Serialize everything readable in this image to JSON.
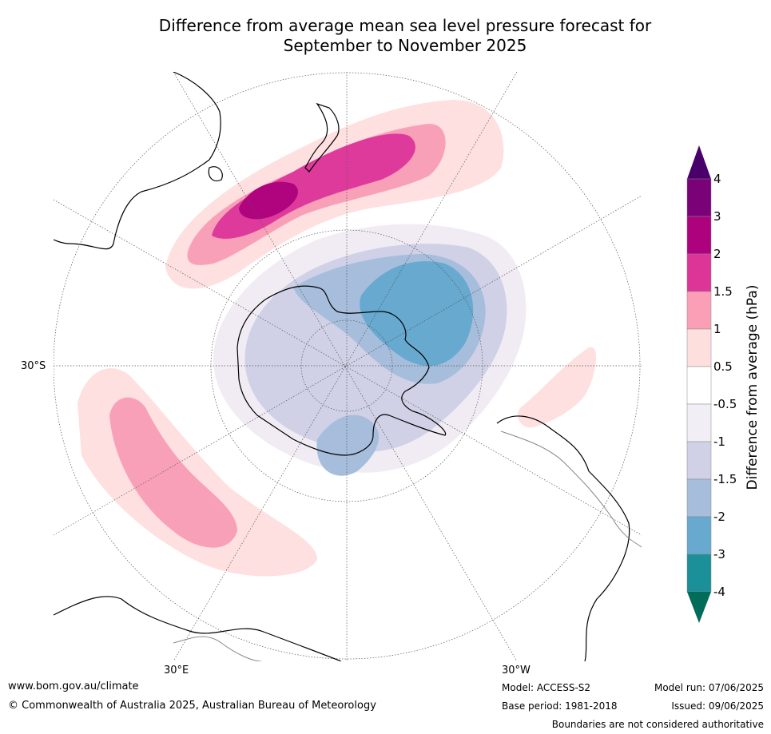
{
  "title": {
    "line1": "Difference from average mean sea level pressure forecast for",
    "line2": "September to November 2025"
  },
  "map": {
    "projection": "south-polar stereographic",
    "labels": {
      "lat_30s": "30°S",
      "lon_30e": "30°E",
      "lon_30w": "30°W"
    },
    "colors": {
      "pos_0_5_1": "#fde0df",
      "pos_1_1_5": "#f9a0b9",
      "pos_1_5_2": "#de3a9c",
      "pos_2_3": "#b0047f",
      "neg_0_5_1": "#f1ecf3",
      "neg_1_1_5": "#d0d1e6",
      "neg_1_5_2": "#a6bddb",
      "neg_2_3": "#67a9cf",
      "land": "#000000",
      "graticule": "#555555"
    }
  },
  "colorbar": {
    "label": "Difference from average (hPa)",
    "ticks": [
      "4",
      "3",
      "2",
      "1.5",
      "1",
      "0.5",
      "-0.5",
      "-1",
      "-1.5",
      "-2",
      "-3",
      "-4"
    ],
    "bands": [
      {
        "range": "3 to 4",
        "color": "#7a0177"
      },
      {
        "range": "2 to 3",
        "color": "#ae017e"
      },
      {
        "range": "1.5 to 2",
        "color": "#dd3497"
      },
      {
        "range": "1 to 1.5",
        "color": "#fa9fb5"
      },
      {
        "range": "0.5 to 1",
        "color": "#fde0dd"
      },
      {
        "range": "-0.5 to 0.5",
        "color": "#ffffff"
      },
      {
        "range": "-1 to -0.5",
        "color": "#f1eef6"
      },
      {
        "range": "-1.5 to -1",
        "color": "#d0d1e6"
      },
      {
        "range": "-2 to -1.5",
        "color": "#a6bddb"
      },
      {
        "range": "-3 to -2",
        "color": "#67a9cf"
      },
      {
        "range": "-4 to -3",
        "color": "#1c9099"
      }
    ],
    "over_color": "#49006a",
    "under_color": "#016c59"
  },
  "footer": {
    "website": "www.bom.gov.au/climate",
    "copyright": "© Commonwealth of Australia 2025, Australian Bureau of Meteorology",
    "model": "Model: ACCESS-S2",
    "base_period": "Base period: 1981-2018",
    "model_run": "Model run: 07/06/2025",
    "issued": "Issued: 09/06/2025",
    "boundaries": "Boundaries are not considered authoritative"
  }
}
